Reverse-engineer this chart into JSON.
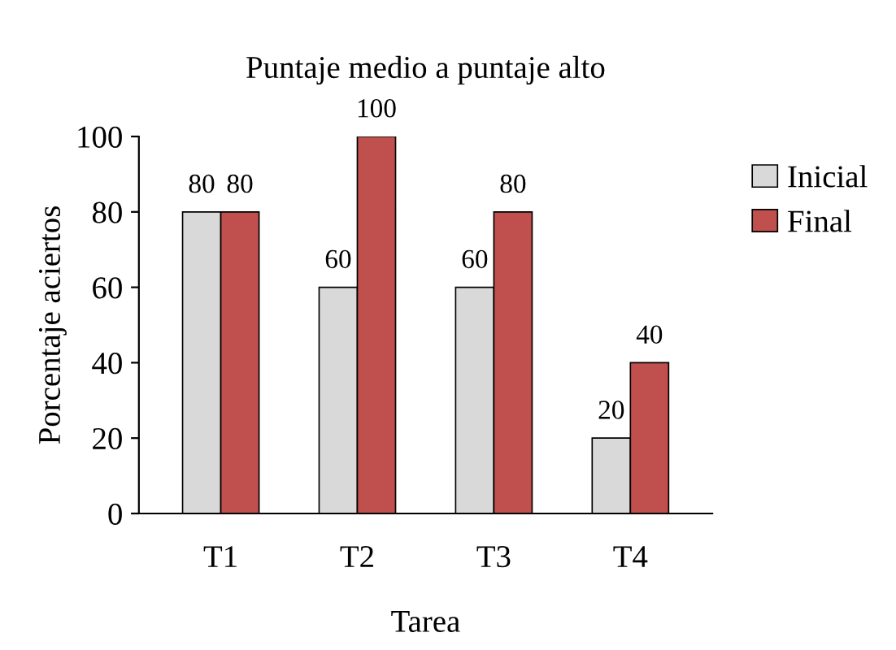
{
  "chart_data": {
    "type": "bar",
    "title": "Puntaje medio a puntaje alto",
    "xlabel": "Tarea",
    "ylabel": "Porcentaje aciertos",
    "categories": [
      "T1",
      "T2",
      "T3",
      "T4"
    ],
    "series": [
      {
        "name": "Inicial",
        "color": "#d9d9d9",
        "values": [
          80,
          60,
          60,
          20
        ]
      },
      {
        "name": "Final",
        "color": "#c0504d",
        "values": [
          80,
          100,
          80,
          40
        ]
      }
    ],
    "ylim": [
      0,
      100
    ],
    "yticks": [
      0,
      20,
      40,
      60,
      80,
      100
    ],
    "grid": false,
    "legend": "right",
    "data_labels": true
  }
}
